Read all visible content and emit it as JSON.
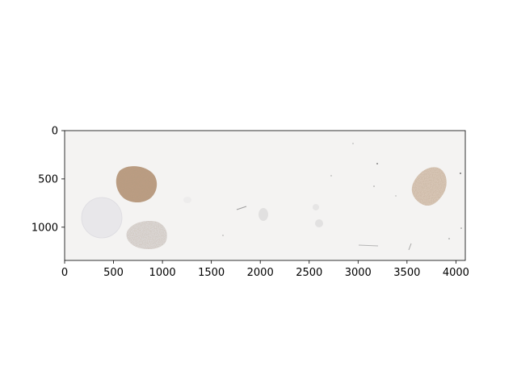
{
  "image_axes": {
    "x_ticks": [
      "0",
      "500",
      "1000",
      "1500",
      "2000",
      "2500",
      "3000",
      "3500",
      "4000"
    ],
    "y_ticks": [
      "0",
      "500",
      "1000"
    ],
    "xlim": [
      0,
      4096
    ],
    "ylim": [
      1344,
      0
    ],
    "x_tick_values": [
      0,
      500,
      1000,
      1500,
      2000,
      2500,
      3000,
      3500,
      4000
    ],
    "y_tick_values": [
      0,
      500,
      1000
    ]
  },
  "colors": {
    "slide_background": "#f4f3f2",
    "tissue_brown": "#b99a80",
    "tissue_light": "#d8cbc0",
    "pale_disc": "#e7e6e9",
    "gray_tissue": "#d6d3d2"
  }
}
